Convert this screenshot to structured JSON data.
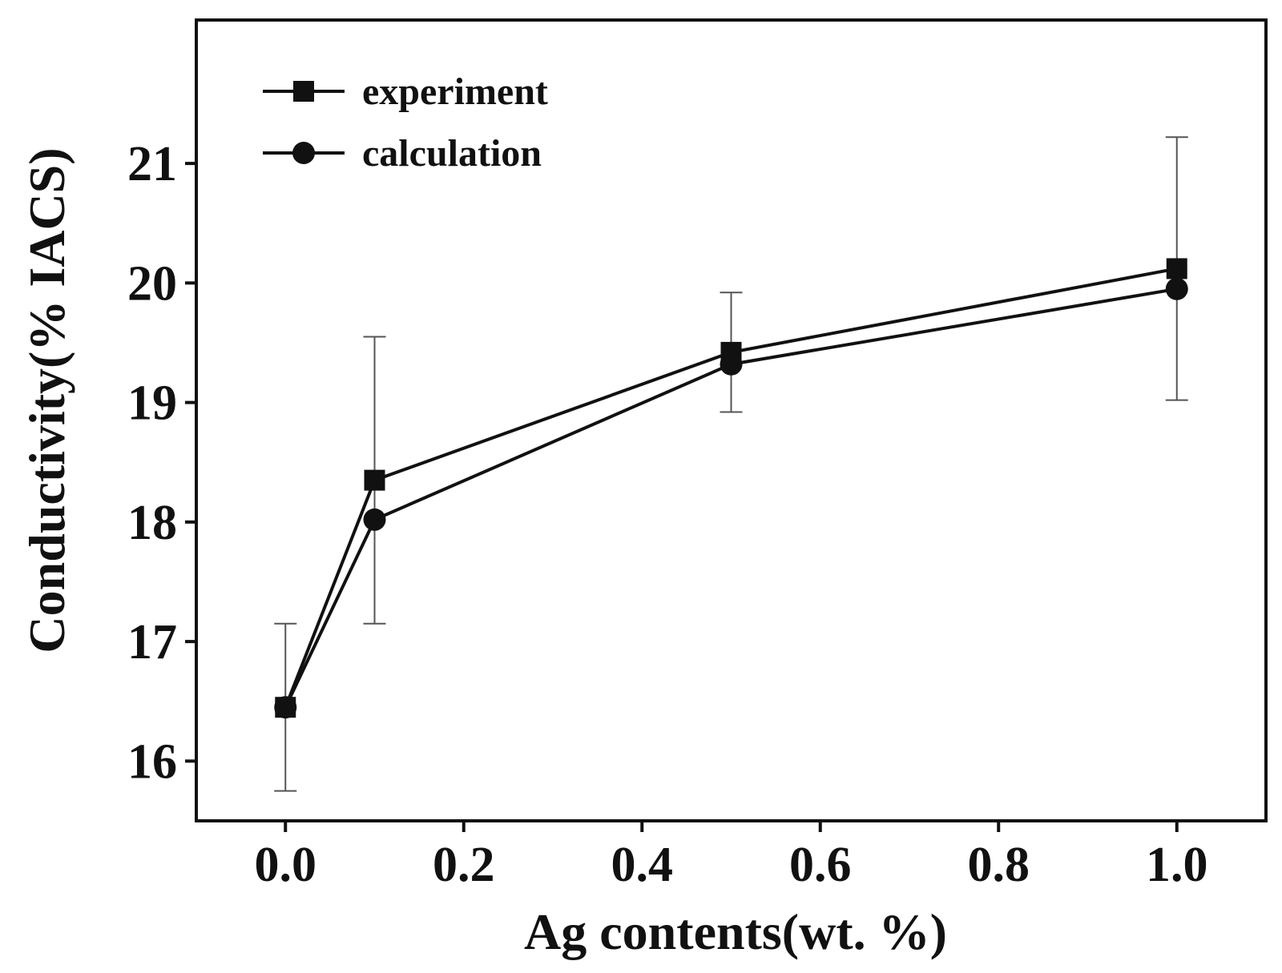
{
  "chart_data": {
    "type": "line",
    "title": "",
    "xlabel": "Ag contents(wt. %)",
    "ylabel": "Conductivity(% IACS)",
    "xlim": [
      -0.1,
      1.1
    ],
    "ylim": [
      15.5,
      22.2
    ],
    "xticks": [
      0.0,
      0.2,
      0.4,
      0.6,
      0.8,
      1.0
    ],
    "xtick_labels": [
      "0.0",
      "0.2",
      "0.4",
      "0.6",
      "0.8",
      "1.0"
    ],
    "yticks": [
      16,
      17,
      18,
      19,
      20,
      21
    ],
    "ytick_labels": [
      "16",
      "17",
      "18",
      "19",
      "20",
      "21"
    ],
    "grid": false,
    "legend_position": "top-left",
    "series": [
      {
        "name": "experiment",
        "marker": "square",
        "x": [
          0.0,
          0.1,
          0.5,
          1.0
        ],
        "y": [
          16.45,
          18.35,
          19.42,
          20.12
        ],
        "error": [
          0.7,
          1.2,
          0.5,
          1.1
        ]
      },
      {
        "name": "calculation",
        "marker": "circle",
        "x": [
          0.0,
          0.1,
          0.5,
          1.0
        ],
        "y": [
          16.45,
          18.02,
          19.32,
          19.95
        ]
      }
    ]
  }
}
